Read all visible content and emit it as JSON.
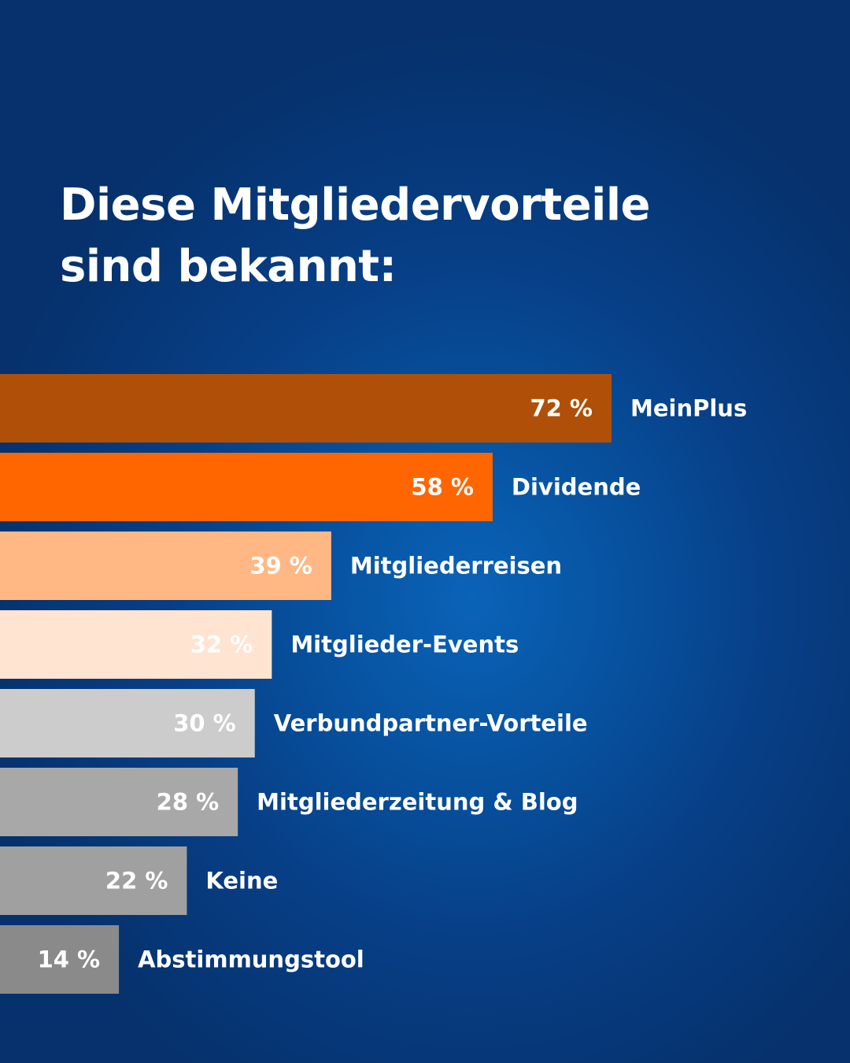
{
  "title_lines": [
    "Diese Mitgliedervorteile",
    "sind bekannt:"
  ],
  "chart_data": {
    "type": "bar",
    "orientation": "horizontal",
    "unit": "%",
    "categories": [
      "MeinPlus",
      "Dividende",
      "Mitgliederreisen",
      "Mitglieder-Events",
      "Verbundpartner-Vorteile",
      "Mitgliederzeitung & Blog",
      "Keine",
      "Abstimmungstool"
    ],
    "values": [
      72,
      58,
      39,
      32,
      30,
      28,
      22,
      14
    ],
    "value_labels": [
      "72 %",
      "58 %",
      "39 %",
      "32 %",
      "30 %",
      "28 %",
      "22 %",
      "14 %"
    ],
    "bar_colors": [
      "#b05008",
      "#ff6600",
      "#ffb784",
      "#ffe4d2",
      "#cccccc",
      "#a8a8a8",
      "#a0a0a0",
      "#8a8a8a"
    ],
    "value_label_color": "#ffffff",
    "category_label_color": "#ffffff"
  }
}
